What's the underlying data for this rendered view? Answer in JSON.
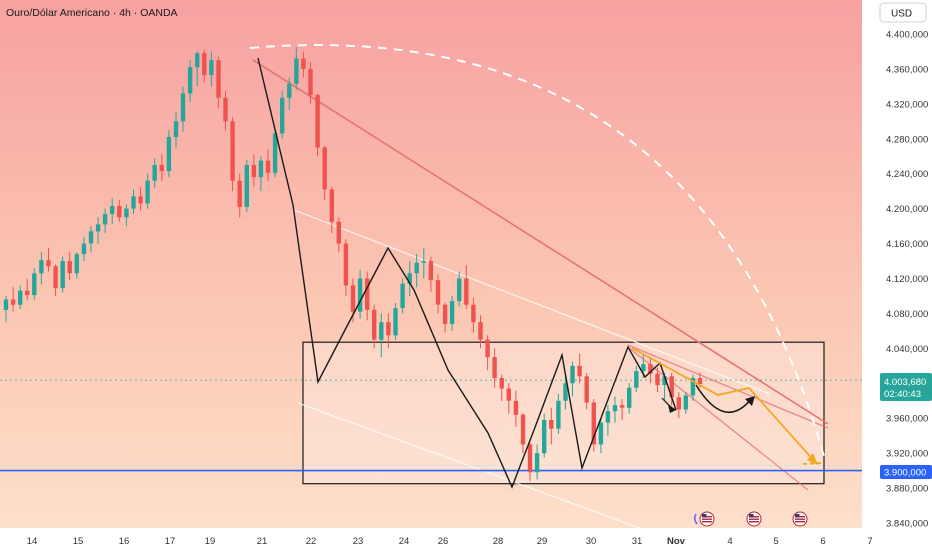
{
  "header": {
    "title": "Ouro/Dólar Americano · 4h · OANDA",
    "currency": "USD"
  },
  "colors": {
    "up": "#26a69a",
    "down": "#ef5350",
    "support_line": "#2962ff",
    "trendline": "#e57373",
    "projection": "#f5a623",
    "box": "#1a1a1a"
  },
  "price_tag": {
    "value": "4.003,680",
    "countdown": "02:40:43"
  },
  "support_tag": "3.900,000",
  "chart_data": {
    "type": "candlestick",
    "symbol": "XAUUSD",
    "timeframe": "4h",
    "ylim": [
      3820,
      4430
    ],
    "y_ticks": [
      "4.400,000",
      "4.360,000",
      "4.320,000",
      "4.280,000",
      "4.240,000",
      "4.200,000",
      "4.160,000",
      "4.120,000",
      "4.080,000",
      "4.040,000",
      "3.960,000",
      "3.920,000",
      "3.880,000",
      "3.840,000"
    ],
    "x_ticks": [
      "14",
      "15",
      "16",
      "17",
      "19",
      "21",
      "22",
      "23",
      "24",
      "26",
      "28",
      "29",
      "30",
      "31",
      "Nov",
      "4",
      "5",
      "6",
      "7"
    ],
    "current_price": 4003.68,
    "support_level": 3900,
    "candles_ohlc": [
      [
        4084,
        4100,
        4070,
        4096
      ],
      [
        4096,
        4110,
        4082,
        4090
      ],
      [
        4090,
        4112,
        4085,
        4106
      ],
      [
        4106,
        4120,
        4095,
        4101
      ],
      [
        4101,
        4132,
        4096,
        4126
      ],
      [
        4126,
        4150,
        4113,
        4141
      ],
      [
        4141,
        4155,
        4128,
        4134
      ],
      [
        4134,
        4136,
        4100,
        4109
      ],
      [
        4109,
        4145,
        4104,
        4140
      ],
      [
        4140,
        4150,
        4118,
        4126
      ],
      [
        4126,
        4150,
        4120,
        4148
      ],
      [
        4148,
        4168,
        4140,
        4160
      ],
      [
        4160,
        4180,
        4150,
        4174
      ],
      [
        4174,
        4190,
        4160,
        4182
      ],
      [
        4182,
        4200,
        4172,
        4194
      ],
      [
        4194,
        4212,
        4182,
        4203
      ],
      [
        4203,
        4210,
        4185,
        4190
      ],
      [
        4190,
        4205,
        4180,
        4200
      ],
      [
        4200,
        4222,
        4194,
        4214
      ],
      [
        4214,
        4225,
        4198,
        4206
      ],
      [
        4206,
        4240,
        4200,
        4232
      ],
      [
        4232,
        4258,
        4224,
        4250
      ],
      [
        4250,
        4262,
        4232,
        4243
      ],
      [
        4243,
        4290,
        4236,
        4282
      ],
      [
        4282,
        4310,
        4270,
        4300
      ],
      [
        4300,
        4340,
        4288,
        4332
      ],
      [
        4332,
        4370,
        4322,
        4362
      ],
      [
        4362,
        4380,
        4340,
        4378
      ],
      [
        4378,
        4382,
        4345,
        4353
      ],
      [
        4353,
        4380,
        4340,
        4370
      ],
      [
        4370,
        4374,
        4315,
        4327
      ],
      [
        4327,
        4335,
        4290,
        4300
      ],
      [
        4300,
        4305,
        4220,
        4232
      ],
      [
        4232,
        4240,
        4190,
        4202
      ],
      [
        4202,
        4256,
        4196,
        4250
      ],
      [
        4250,
        4262,
        4225,
        4236
      ],
      [
        4236,
        4260,
        4220,
        4255
      ],
      [
        4255,
        4268,
        4232,
        4241
      ],
      [
        4241,
        4290,
        4236,
        4286
      ],
      [
        4286,
        4335,
        4280,
        4327
      ],
      [
        4327,
        4350,
        4313,
        4343
      ],
      [
        4343,
        4385,
        4336,
        4372
      ],
      [
        4372,
        4380,
        4350,
        4360
      ],
      [
        4360,
        4368,
        4320,
        4330
      ],
      [
        4330,
        4332,
        4260,
        4270
      ],
      [
        4270,
        4272,
        4210,
        4222
      ],
      [
        4222,
        4225,
        4172,
        4185
      ],
      [
        4185,
        4190,
        4150,
        4160
      ],
      [
        4160,
        4165,
        4100,
        4112
      ],
      [
        4112,
        4120,
        4070,
        4082
      ],
      [
        4082,
        4130,
        4074,
        4120
      ],
      [
        4120,
        4128,
        4072,
        4084
      ],
      [
        4084,
        4090,
        4040,
        4050
      ],
      [
        4050,
        4080,
        4030,
        4070
      ],
      [
        4070,
        4080,
        4040,
        4055
      ],
      [
        4055,
        4092,
        4050,
        4086
      ],
      [
        4086,
        4120,
        4080,
        4114
      ],
      [
        4114,
        4140,
        4100,
        4126
      ],
      [
        4126,
        4148,
        4110,
        4138
      ],
      [
        4138,
        4155,
        4120,
        4140
      ],
      [
        4140,
        4145,
        4105,
        4118
      ],
      [
        4118,
        4125,
        4080,
        4090
      ],
      [
        4090,
        4092,
        4058,
        4068
      ],
      [
        4068,
        4100,
        4060,
        4094
      ],
      [
        4094,
        4128,
        4088,
        4120
      ],
      [
        4120,
        4135,
        4085,
        4090
      ],
      [
        4090,
        4098,
        4058,
        4070
      ],
      [
        4070,
        4078,
        4040,
        4050
      ],
      [
        4050,
        4055,
        4015,
        4030
      ],
      [
        4030,
        4040,
        3995,
        4006
      ],
      [
        4006,
        4010,
        3980,
        3994
      ],
      [
        3994,
        4000,
        3965,
        3980
      ],
      [
        3980,
        3992,
        3950,
        3964
      ],
      [
        3964,
        3966,
        3920,
        3930
      ],
      [
        3930,
        3932,
        3888,
        3898
      ],
      [
        3898,
        3930,
        3890,
        3920
      ],
      [
        3920,
        3965,
        3915,
        3958
      ],
      [
        3958,
        3972,
        3930,
        3948
      ],
      [
        3948,
        3988,
        3942,
        3980
      ],
      [
        3980,
        4010,
        3970,
        4000
      ],
      [
        4000,
        4025,
        3985,
        4020
      ],
      [
        4020,
        4034,
        4000,
        4008
      ],
      [
        4008,
        4012,
        3970,
        3978
      ],
      [
        3978,
        3982,
        3922,
        3930
      ],
      [
        3930,
        3960,
        3920,
        3955
      ],
      [
        3955,
        3975,
        3940,
        3968
      ],
      [
        3968,
        3985,
        3955,
        3975
      ],
      [
        3975,
        3982,
        3958,
        3972
      ],
      [
        3972,
        4000,
        3965,
        3995
      ],
      [
        3995,
        4020,
        3990,
        4014
      ],
      [
        4014,
        4034,
        4006,
        4022
      ],
      [
        4022,
        4030,
        4000,
        4011
      ],
      [
        4011,
        4018,
        3990,
        3998
      ],
      [
        3998,
        4012,
        3980,
        4008
      ],
      [
        4008,
        4012,
        3975,
        3984
      ],
      [
        3984,
        3990,
        3960,
        3970
      ],
      [
        3970,
        3990,
        3965,
        3986
      ],
      [
        3986,
        4010,
        3980,
        4006
      ],
      [
        4006,
        4012,
        3995,
        3999
      ]
    ],
    "annotations": {
      "range_box": {
        "top": 4047,
        "bottom": 3885
      },
      "support_line": 3900
    }
  },
  "footer": {
    "event_icon_count": 3,
    "event_icon_names": [
      "us-flag-icon",
      "us-flag-icon",
      "us-flag-icon"
    ]
  }
}
